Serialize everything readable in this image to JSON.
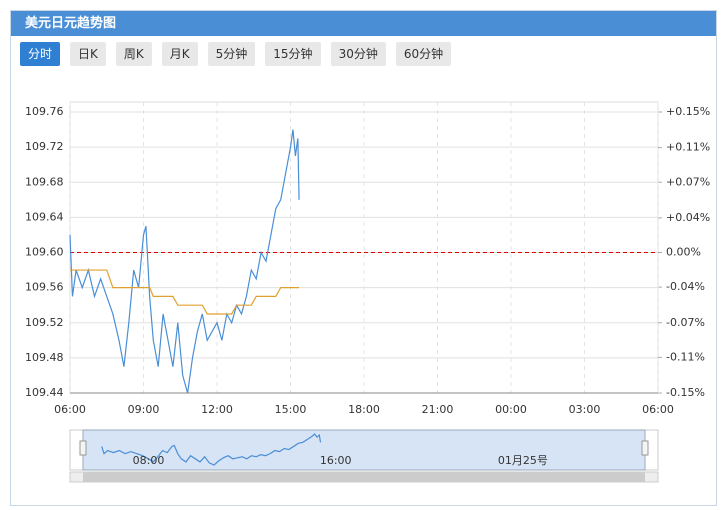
{
  "header": {
    "title": "美元日元趋势图"
  },
  "tabs": [
    "分时",
    "日K",
    "周K",
    "月K",
    "5分钟",
    "15分钟",
    "30分钟",
    "60分钟"
  ],
  "active_tab": 0,
  "chart_data": {
    "type": "line",
    "x": [
      6.0,
      6.1,
      6.25,
      6.5,
      6.75,
      7.0,
      7.25,
      7.5,
      7.75,
      8.0,
      8.2,
      8.4,
      8.6,
      8.8,
      9.0,
      9.1,
      9.25,
      9.4,
      9.6,
      9.8,
      10.0,
      10.2,
      10.4,
      10.6,
      10.8,
      11.0,
      11.2,
      11.4,
      11.6,
      11.8,
      12.0,
      12.2,
      12.4,
      12.6,
      12.8,
      13.0,
      13.2,
      13.4,
      13.6,
      13.8,
      14.0,
      14.2,
      14.4,
      14.6,
      14.8,
      15.0,
      15.1,
      15.2,
      15.3,
      15.35
    ],
    "series": [
      {
        "name": "price",
        "color": "#4a8fd6",
        "values": [
          109.62,
          109.55,
          109.58,
          109.56,
          109.58,
          109.55,
          109.57,
          109.55,
          109.53,
          109.5,
          109.47,
          109.52,
          109.58,
          109.56,
          109.62,
          109.63,
          109.55,
          109.5,
          109.47,
          109.53,
          109.5,
          109.47,
          109.52,
          109.46,
          109.44,
          109.48,
          109.51,
          109.53,
          109.5,
          109.51,
          109.52,
          109.5,
          109.53,
          109.52,
          109.54,
          109.53,
          109.55,
          109.58,
          109.57,
          109.6,
          109.59,
          109.62,
          109.65,
          109.66,
          109.69,
          109.72,
          109.74,
          109.71,
          109.73,
          109.66
        ]
      },
      {
        "name": "average",
        "color": "#e0a030",
        "values": [
          109.58,
          109.58,
          109.58,
          109.58,
          109.58,
          109.58,
          109.58,
          109.58,
          109.56,
          109.56,
          109.56,
          109.56,
          109.56,
          109.56,
          109.56,
          109.56,
          109.56,
          109.55,
          109.55,
          109.55,
          109.55,
          109.55,
          109.54,
          109.54,
          109.54,
          109.54,
          109.54,
          109.54,
          109.53,
          109.53,
          109.53,
          109.53,
          109.53,
          109.53,
          109.54,
          109.54,
          109.54,
          109.54,
          109.55,
          109.55,
          109.55,
          109.55,
          109.55,
          109.56,
          109.56,
          109.56,
          109.56,
          109.56,
          109.56,
          109.56
        ]
      }
    ],
    "xlim": [
      6,
      30
    ],
    "xticks": [
      {
        "value": 6,
        "label": "06:00"
      },
      {
        "value": 9,
        "label": "09:00"
      },
      {
        "value": 12,
        "label": "12:00"
      },
      {
        "value": 15,
        "label": "15:00"
      },
      {
        "value": 18,
        "label": "18:00"
      },
      {
        "value": 21,
        "label": "21:00"
      },
      {
        "value": 24,
        "label": "00:00"
      },
      {
        "value": 27,
        "label": "03:00"
      },
      {
        "value": 30,
        "label": "06:00"
      }
    ],
    "ylim": [
      109.44,
      109.76
    ],
    "yticks": [
      109.44,
      109.48,
      109.52,
      109.56,
      {
        "value": 109.6,
        "label": "109.60"
      },
      109.64,
      109.68,
      109.72,
      109.76
    ],
    "y2lim": [
      -0.146,
      0.146
    ],
    "y2ticks": [
      {
        "value": -0.146,
        "label": "-0.15%"
      },
      {
        "value": -0.109,
        "label": "-0.11%"
      },
      {
        "value": -0.073,
        "label": "-0.07%"
      },
      {
        "value": -0.036,
        "label": "-0.04%"
      },
      {
        "value": 0,
        "label": "0.00%"
      },
      {
        "value": 0.036,
        "label": "+0.04%"
      },
      {
        "value": 0.073,
        "label": "+0.07%"
      },
      {
        "value": 0.109,
        "label": "+0.11%"
      },
      {
        "value": 0.146,
        "label": "+0.15%"
      }
    ],
    "baseline": 109.6,
    "grid": true
  },
  "navigator": {
    "labels": [
      {
        "value": 8,
        "label": "08:00"
      },
      {
        "value": 16,
        "label": "16:00"
      },
      {
        "value": 24,
        "label": "01月25号"
      }
    ]
  }
}
